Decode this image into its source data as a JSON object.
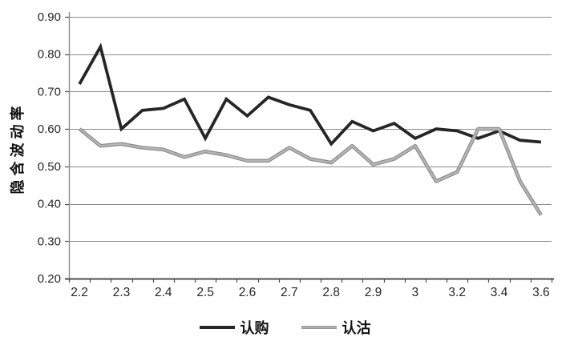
{
  "chart_data": {
    "type": "line",
    "title": "",
    "xlabel": "",
    "ylabel": "隐含波动率",
    "x": [
      2.2,
      2.25,
      2.3,
      2.35,
      2.4,
      2.45,
      2.5,
      2.55,
      2.6,
      2.65,
      2.7,
      2.75,
      2.8,
      2.85,
      2.9,
      2.95,
      3,
      3.1,
      3.2,
      3.3,
      3.4,
      3.5,
      3.6
    ],
    "x_tick_labels": [
      "2.2",
      "2.3",
      "2.4",
      "2.5",
      "2.6",
      "2.7",
      "2.8",
      "2.9",
      "3",
      "3.2",
      "3.4",
      "3.6"
    ],
    "x_tick_label_indices": [
      0,
      2,
      4,
      6,
      8,
      10,
      12,
      14,
      16,
      18,
      20,
      22
    ],
    "ylim": [
      0.2,
      0.9
    ],
    "y_tick_labels": [
      "0.90",
      "0.80",
      "0.70",
      "0.60",
      "0.50",
      "0.40",
      "0.30",
      "0.20"
    ],
    "grid": true,
    "legend_position": "bottom",
    "series": [
      {
        "name": "认购",
        "color": "#262626",
        "values": [
          0.72,
          0.82,
          0.6,
          0.65,
          0.655,
          0.68,
          0.575,
          0.68,
          0.635,
          0.685,
          0.665,
          0.65,
          0.56,
          0.62,
          0.595,
          0.615,
          0.575,
          0.6,
          0.595,
          0.575,
          0.595,
          0.57,
          0.565
        ]
      },
      {
        "name": "认沽",
        "color": "#a6a6a6",
        "edge_color": "#8f8f8f",
        "core_color": "#b8b8b8",
        "values": [
          0.6,
          0.555,
          0.56,
          0.55,
          0.545,
          0.525,
          0.54,
          0.53,
          0.515,
          0.515,
          0.55,
          0.52,
          0.51,
          0.555,
          0.505,
          0.52,
          0.555,
          0.46,
          0.485,
          0.6,
          0.6,
          0.46,
          0.37
        ]
      }
    ],
    "colors": {
      "background": "#ffffff",
      "gridline": "#8c8c8c",
      "y_axis": "#8c8c8c",
      "x_axis": "#4d4d4d",
      "tick": "#4d4d4d",
      "tick_text": "#262626"
    }
  }
}
